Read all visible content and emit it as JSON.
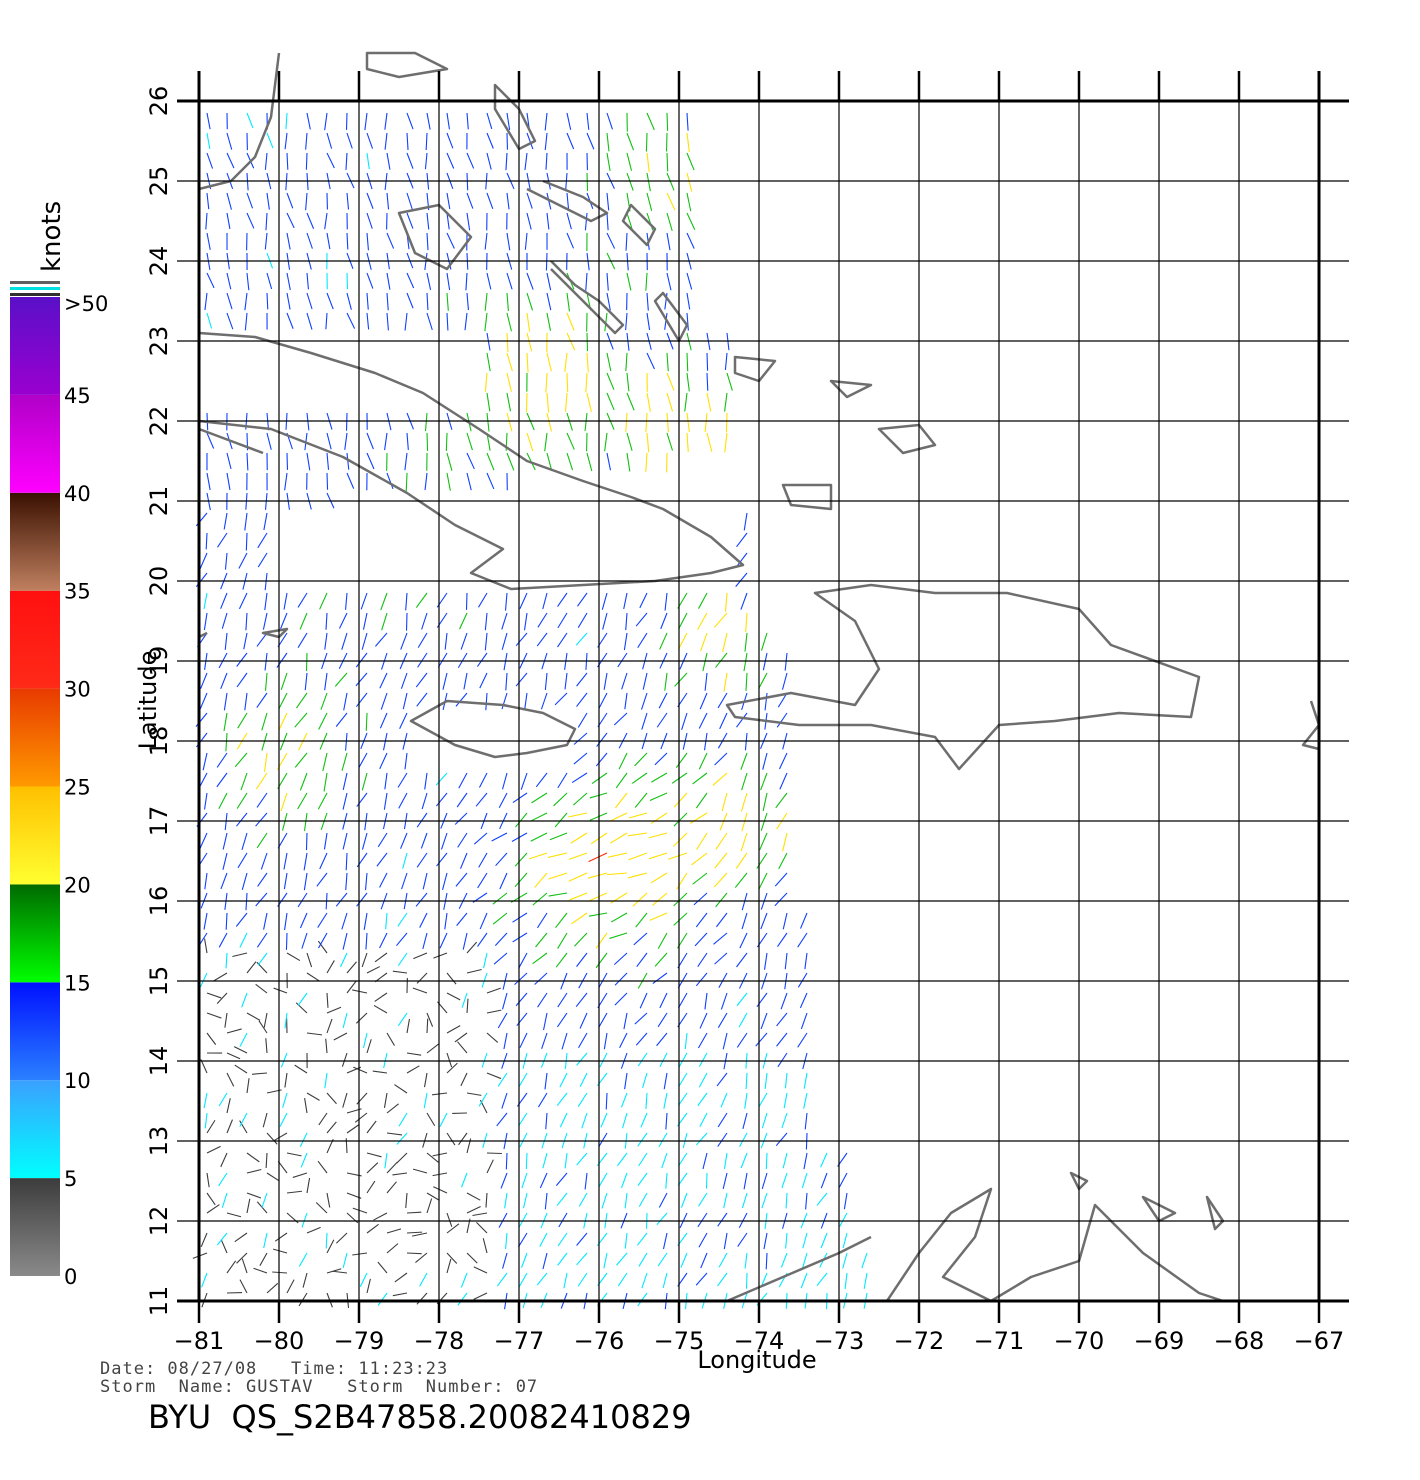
{
  "plot": {
    "xlabel": "Longitude",
    "ylabel": "Latitude",
    "x_ticks": [
      "−81",
      "−80",
      "−79",
      "−78",
      "−77",
      "−76",
      "−75",
      "−74",
      "−73",
      "−72",
      "−71",
      "−70",
      "−69",
      "−68",
      "−67"
    ],
    "y_ticks": [
      "11",
      "12",
      "13",
      "14",
      "15",
      "16",
      "17",
      "18",
      "19",
      "20",
      "21",
      "22",
      "23",
      "24",
      "25",
      "26"
    ],
    "lon_range": [
      -81,
      -67
    ],
    "lat_range": [
      11,
      26
    ],
    "grid": true,
    "grid_color": "#000000",
    "coast_color": "#6e6e6e"
  },
  "legend": {
    "title": "knots",
    "labels": [
      ">50",
      "45",
      "40",
      "35",
      "30",
      "25",
      "20",
      "15",
      "10",
      "5",
      "0"
    ],
    "bands": [
      {
        "from": 0,
        "to": 5,
        "top": "#3c3c3c",
        "bottom": "#8a8a8a"
      },
      {
        "from": 5,
        "to": 10,
        "top": "#3aa0ff",
        "bottom": "#00ffff"
      },
      {
        "from": 10,
        "to": 15,
        "top": "#0010ff",
        "bottom": "#2a80ff"
      },
      {
        "from": 15,
        "to": 20,
        "top": "#006a00",
        "bottom": "#00ff00"
      },
      {
        "from": 20,
        "to": 25,
        "top": "#ffc000",
        "bottom": "#ffff30"
      },
      {
        "from": 25,
        "to": 30,
        "top": "#e83a00",
        "bottom": "#ff9a00"
      },
      {
        "from": 30,
        "to": 35,
        "top": "#ff1010",
        "bottom": "#ff2a18"
      },
      {
        "from": 35,
        "to": 40,
        "top": "#3a1000",
        "bottom": "#c08060"
      },
      {
        "from": 40,
        "to": 45,
        "top": "#b000c8",
        "bottom": "#ff00ff"
      },
      {
        "from": 45,
        "to": 50,
        "top": "#5a10c8",
        "bottom": "#9a00d0"
      }
    ]
  },
  "info": {
    "date_line": "Date: 08/27/08   Time: 11:23:23",
    "storm_line": "Storm  Name: GUSTAV   Storm  Number: 07",
    "product": "BYU  QS_S2B47858.20082410829"
  },
  "colors": {
    "calm": "#3c3c3c",
    "light": "#00e8ff",
    "moderate": "#1040ff",
    "fresh": "#10c010",
    "strong": "#ffe000",
    "gale": "#ff2a00",
    "storm": "#b000c8"
  }
}
